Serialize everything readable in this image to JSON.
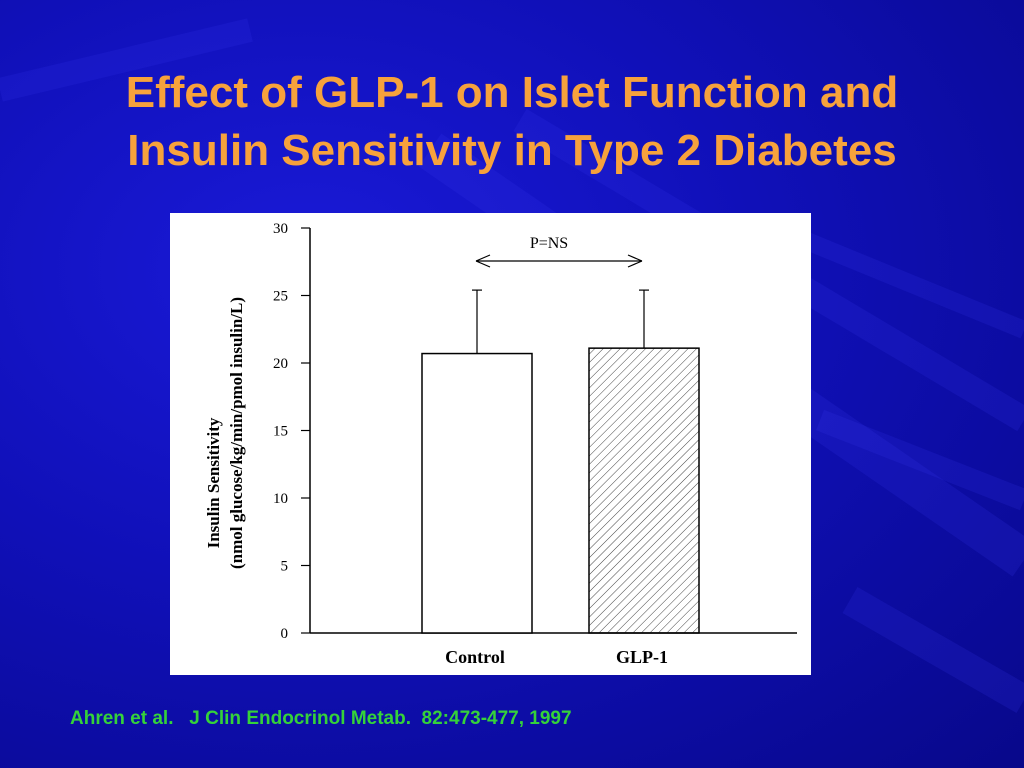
{
  "slide": {
    "title_line1": "Effect of GLP-1 on Islet Function and",
    "title_line2": "Insulin Sensitivity in Type 2 Diabetes",
    "citation": "Ahren et al.   J Clin Endocrinol Metab.  82:473-477, 1997",
    "colors": {
      "background": "#1010b8",
      "title": "#f7a23c",
      "citation": "#35d23a"
    }
  },
  "chart_data": {
    "type": "bar",
    "categories": [
      "Control",
      "GLP-1"
    ],
    "values": [
      20.7,
      21.1
    ],
    "error_upper": [
      25.4,
      25.4
    ],
    "ylabel_line1": "Insulin Sensitivity",
    "ylabel_line2": "(nmol glucose/kg/min/pmol insulin/L)",
    "ylim": [
      0,
      30
    ],
    "yticks": [
      0,
      5,
      10,
      15,
      20,
      25,
      30
    ],
    "annotation": "P=NS",
    "bar_styles": [
      "open",
      "hatched"
    ],
    "grid": false
  }
}
